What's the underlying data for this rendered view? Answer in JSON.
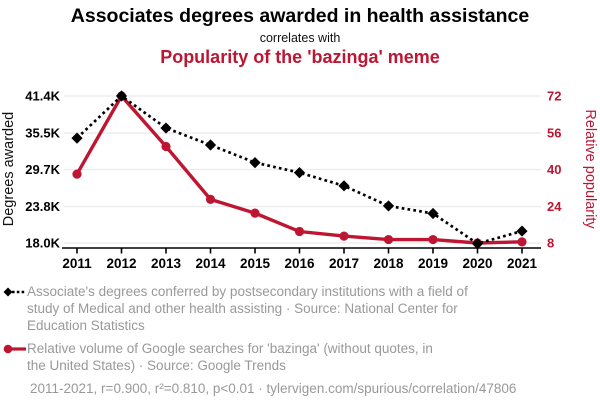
{
  "header": {
    "title": "Associates degrees awarded in health assistance",
    "connector": "correlates with",
    "subtitle": "Popularity of the 'bazinga' meme"
  },
  "chart_data": {
    "type": "line",
    "x": [
      2011,
      2012,
      2013,
      2014,
      2015,
      2016,
      2017,
      2018,
      2019,
      2020,
      2021
    ],
    "x_tick_labels": [
      "2011",
      "2012",
      "2013",
      "2014",
      "2015",
      "2016",
      "2017",
      "2018",
      "2019",
      "2020",
      "2021"
    ],
    "series": [
      {
        "name": "Associate's degrees conferred by postsecondary institutions with a field of study of Medical and other health assisting",
        "axis": "left",
        "line_style": "dashed",
        "marker": "diamond",
        "color": "#000000",
        "values": [
          34700,
          41400,
          36300,
          33600,
          30800,
          29200,
          27100,
          23900,
          22700,
          17900,
          19900
        ]
      },
      {
        "name": "Relative volume of Google searches for 'bazinga' (without quotes, in the United States)",
        "axis": "right",
        "line_style": "solid",
        "marker": "circle",
        "color": "#be1632",
        "values": [
          38,
          72,
          50,
          27,
          21,
          13,
          11,
          9.5,
          9.5,
          8,
          8.5
        ]
      }
    ],
    "left_axis": {
      "label": "Degrees awarded",
      "tick_labels": [
        "41.4K",
        "35.5K",
        "29.7K",
        "23.8K",
        "18.0K"
      ],
      "tick_values": [
        41400,
        35500,
        29700,
        23800,
        18000
      ],
      "range": [
        18000,
        41400
      ]
    },
    "right_axis": {
      "label": "Relative popularity",
      "tick_labels": [
        "72",
        "56",
        "40",
        "24",
        "8"
      ],
      "tick_values": [
        72,
        56,
        40,
        24,
        8
      ],
      "range": [
        8,
        72
      ]
    },
    "grid": true,
    "legend_position": "bottom"
  },
  "legend": {
    "items": [
      {
        "icon": "black-diamond-dashed-line-icon",
        "lines": [
          "Associate's degrees conferred by postsecondary institutions with a field of",
          "study of Medical and other health assisting · Source: National Center for",
          "Education Statistics"
        ]
      },
      {
        "icon": "red-circle-solid-line-icon",
        "lines": [
          "Relative volume of Google searches for 'bazinga' (without quotes, in",
          "the United States) · Source: Google Trends"
        ]
      }
    ]
  },
  "footer": {
    "stats": "2011-2021, r=0.900, r²=0.810, p<0.01 · tylervigen.com/spurious/correlation/47806"
  },
  "colors": {
    "accent_red": "#be1632",
    "legend_gray": "#999999",
    "grid_gray": "#ebebeb",
    "axis_black": "#000000"
  }
}
